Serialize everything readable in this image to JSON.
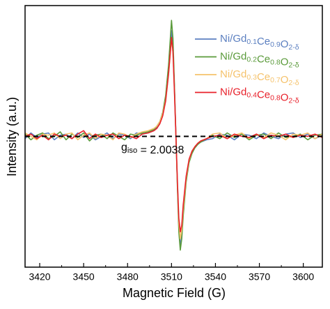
{
  "chart_data": {
    "type": "line",
    "x_label": "Magnetic Field (G)",
    "y_label": "Intensity (a.u.)",
    "annotation": "giso = 2.0038",
    "reference_line": 0,
    "x": [
      3410,
      3414,
      3418,
      3422,
      3426,
      3430,
      3434,
      3438,
      3442,
      3446,
      3450,
      3454,
      3458,
      3462,
      3466,
      3470,
      3474,
      3478,
      3482,
      3486,
      3490,
      3494,
      3498,
      3500,
      3502,
      3504,
      3506,
      3508,
      3510,
      3511,
      3512,
      3513,
      3514,
      3515,
      3516,
      3517,
      3518,
      3520,
      3522,
      3524,
      3526,
      3528,
      3530,
      3534,
      3538,
      3543,
      3548,
      3553,
      3558,
      3563,
      3568,
      3573,
      3578,
      3583,
      3588,
      3593,
      3598,
      3603,
      3608,
      3613
    ],
    "series": [
      {
        "name": "Ni/Gd0.1Ce0.9O2-δ",
        "color": "#5b7fc0",
        "values": [
          -0.02,
          0.03,
          -0.01,
          0.02,
          0.03,
          -0.03,
          0.01,
          0.02,
          -0.02,
          0.03,
          -0.01,
          0.02,
          -0.03,
          0.0,
          0.03,
          -0.02,
          0.02,
          0.01,
          -0.02,
          0.03,
          0.02,
          0.03,
          0.05,
          0.08,
          0.12,
          0.19,
          0.33,
          0.58,
          0.93,
          0.79,
          0.42,
          0.01,
          -0.41,
          -0.8,
          -0.97,
          -0.86,
          -0.67,
          -0.38,
          -0.22,
          -0.14,
          -0.1,
          -0.07,
          -0.05,
          -0.03,
          -0.02,
          0.02,
          0.01,
          -0.03,
          0.02,
          0.01,
          -0.02,
          0.03,
          0.0,
          -0.02,
          0.02,
          0.03,
          -0.01,
          0.02,
          -0.02,
          0.01
        ]
      },
      {
        "name": "Ni/Gd0.2Ce0.8O2-δ",
        "color": "#5a9a3a",
        "values": [
          0.02,
          -0.03,
          0.01,
          0.03,
          -0.02,
          0.0,
          0.04,
          -0.03,
          0.02,
          -0.01,
          0.03,
          -0.04,
          0.01,
          0.02,
          -0.02,
          0.03,
          0.0,
          -0.03,
          0.02,
          0.01,
          0.03,
          0.04,
          0.06,
          0.09,
          0.13,
          0.21,
          0.36,
          0.63,
          1.02,
          0.86,
          0.46,
          0.02,
          -0.44,
          -0.84,
          -1.0,
          -0.9,
          -0.7,
          -0.4,
          -0.23,
          -0.15,
          -0.1,
          -0.07,
          -0.05,
          -0.02,
          0.01,
          -0.02,
          0.03,
          -0.01,
          0.02,
          -0.03,
          0.01,
          0.02,
          -0.02,
          0.03,
          -0.01,
          0.0,
          0.02,
          -0.03,
          0.01,
          0.02
        ]
      },
      {
        "name": "Ni/Gd0.3Ce0.7O2-δ",
        "color": "#f5c26b",
        "values": [
          0.03,
          0.0,
          -0.03,
          0.02,
          0.01,
          0.03,
          -0.02,
          0.02,
          0.03,
          -0.03,
          0.01,
          0.03,
          -0.02,
          0.02,
          0.01,
          -0.03,
          0.03,
          0.02,
          -0.01,
          0.02,
          0.04,
          0.05,
          0.07,
          0.09,
          0.13,
          0.2,
          0.32,
          0.55,
          0.86,
          0.74,
          0.4,
          0.0,
          -0.4,
          -0.76,
          -0.9,
          -0.82,
          -0.64,
          -0.37,
          -0.21,
          -0.13,
          -0.09,
          -0.06,
          -0.04,
          -0.02,
          0.02,
          0.03,
          -0.02,
          0.01,
          0.03,
          -0.02,
          0.02,
          -0.01,
          0.03,
          0.01,
          -0.03,
          0.02,
          0.01,
          0.03,
          -0.02,
          0.02
        ]
      },
      {
        "name": "Ni/Gd0.4Ce0.8O2-δ",
        "color": "#e8202a",
        "values": [
          0.0,
          0.02,
          -0.02,
          0.01,
          -0.03,
          0.02,
          0.0,
          0.01,
          -0.02,
          0.02,
          0.05,
          -0.02,
          0.02,
          -0.01,
          0.01,
          0.02,
          -0.02,
          0.01,
          0.0,
          -0.02,
          0.02,
          0.03,
          0.05,
          0.07,
          0.11,
          0.18,
          0.31,
          0.55,
          0.87,
          0.74,
          0.39,
          0.01,
          -0.38,
          -0.72,
          -0.84,
          -0.78,
          -0.6,
          -0.35,
          -0.2,
          -0.13,
          -0.09,
          -0.06,
          -0.04,
          -0.02,
          0.0,
          0.01,
          -0.02,
          0.02,
          0.0,
          -0.01,
          0.02,
          -0.02,
          0.01,
          0.0,
          0.02,
          -0.01,
          0.01,
          0.0,
          0.02,
          -0.01
        ]
      }
    ],
    "xlim": [
      3410,
      3613
    ],
    "xticks": [
      3420,
      3450,
      3480,
      3510,
      3540,
      3570,
      3600
    ],
    "ylim": [
      -1.15,
      1.15
    ],
    "grid": false,
    "legend": "upper right"
  }
}
